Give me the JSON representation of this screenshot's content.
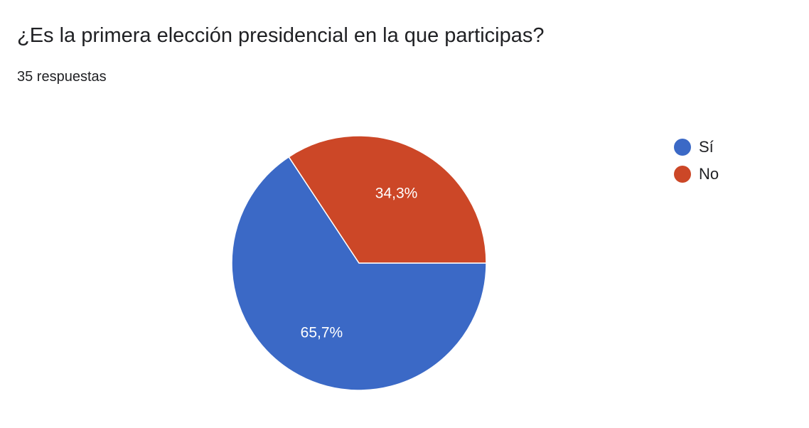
{
  "question": {
    "title": "¿Es la primera elección presidencial en la que participas?",
    "responses": "35 respuestas"
  },
  "chart_data": {
    "type": "pie",
    "title": "¿Es la primera elección presidencial en la que participas?",
    "categories": [
      "Sí",
      "No"
    ],
    "values": [
      65.7,
      34.3
    ],
    "labels": [
      "65,7%",
      "34,3%"
    ],
    "colors": [
      "#3b69c6",
      "#cc4727"
    ],
    "legend_position": "right"
  }
}
